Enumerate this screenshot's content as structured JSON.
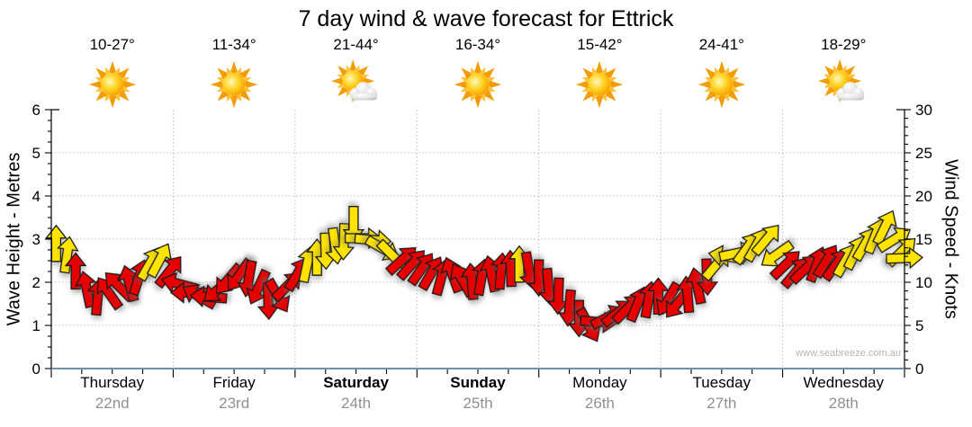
{
  "title": "7 day wind & wave forecast for Ettrick",
  "watermark": "www.seabreeze.com.au",
  "colors": {
    "arrow_red": "#e60000",
    "arrow_yellow": "#ffe400",
    "arrow_outline": "#1a1a1a",
    "axis_black": "#000000",
    "axis_blue": "#3a6d99",
    "grid_gray": "#bdbdbd",
    "date_gray": "#909090",
    "watermark_gray": "#b4b4b4"
  },
  "chart_data": {
    "type": "scatter",
    "description": "Wind direction arrows plotted against time; vertical position = wind speed in knots (right axis), aligned with wave height scale (left axis). Arrow color: red = lighter winds, yellow = stronger winds.",
    "title": "7 day wind & wave forecast for Ettrick",
    "left_axis": {
      "label": "Wave Height - Metres",
      "min": 0,
      "max": 6,
      "ticks": [
        0,
        1,
        2,
        3,
        4,
        5,
        6
      ]
    },
    "right_axis": {
      "label": "Wind Speed - Knots",
      "min": 0,
      "max": 30,
      "ticks": [
        0,
        5,
        10,
        15,
        20,
        25,
        30
      ]
    },
    "grid": "dotted horizontal every 5 knots, dotted vertical at day boundaries",
    "days": [
      {
        "name": "Thursday",
        "date": "22nd",
        "temp": "10-27°",
        "icon": "sunny",
        "bold": false
      },
      {
        "name": "Friday",
        "date": "23rd",
        "temp": "11-34°",
        "icon": "sunny",
        "bold": false
      },
      {
        "name": "Saturday",
        "date": "24th",
        "temp": "21-44°",
        "icon": "partly-cloudy",
        "bold": true
      },
      {
        "name": "Sunday",
        "date": "25th",
        "temp": "16-34°",
        "icon": "sunny",
        "bold": true
      },
      {
        "name": "Monday",
        "date": "26th",
        "temp": "15-42°",
        "icon": "sunny",
        "bold": false
      },
      {
        "name": "Tuesday",
        "date": "27th",
        "temp": "24-41°",
        "icon": "sunny",
        "bold": false
      },
      {
        "name": "Wednesday",
        "date": "28th",
        "temp": "18-29°",
        "icon": "partly-cloudy",
        "bold": false
      }
    ],
    "arrows_format": "[time_days_from_start, wind_speed_knots, direction_deg_clockwise_from_up, color r|y]",
    "arrows": [
      [
        0.04,
        14.5,
        0,
        "y"
      ],
      [
        0.13,
        13.2,
        8,
        "y"
      ],
      [
        0.2,
        11.3,
        0,
        "r"
      ],
      [
        0.29,
        9.2,
        -12,
        "r"
      ],
      [
        0.38,
        8.3,
        5,
        "r"
      ],
      [
        0.47,
        8.8,
        -35,
        "r"
      ],
      [
        0.55,
        9.6,
        -45,
        "r"
      ],
      [
        0.64,
        9.9,
        -15,
        "r"
      ],
      [
        0.72,
        10.6,
        18,
        "r"
      ],
      [
        0.81,
        12.2,
        30,
        "y"
      ],
      [
        0.89,
        12.6,
        28,
        "y"
      ],
      [
        0.97,
        11.3,
        38,
        "r"
      ],
      [
        1.05,
        9.8,
        -75,
        "r"
      ],
      [
        1.13,
        8.8,
        -90,
        "r"
      ],
      [
        1.21,
        8.4,
        -60,
        "r"
      ],
      [
        1.29,
        8.3,
        -85,
        "r"
      ],
      [
        1.37,
        9.2,
        -130,
        "r"
      ],
      [
        1.45,
        10.3,
        -140,
        "r"
      ],
      [
        1.54,
        10.8,
        -145,
        "r"
      ],
      [
        1.62,
        10.4,
        -170,
        "r"
      ],
      [
        1.7,
        9.4,
        -155,
        "r"
      ],
      [
        1.78,
        7.8,
        178,
        "r"
      ],
      [
        1.86,
        8.4,
        150,
        "r"
      ],
      [
        1.94,
        9.6,
        45,
        "r"
      ],
      [
        2.02,
        11.0,
        30,
        "r"
      ],
      [
        2.1,
        12.1,
        12,
        "y"
      ],
      [
        2.18,
        12.9,
        0,
        "y"
      ],
      [
        2.25,
        13.6,
        178,
        "y"
      ],
      [
        2.33,
        14.2,
        172,
        "y"
      ],
      [
        2.4,
        14.7,
        182,
        "y"
      ],
      [
        2.48,
        16.7,
        180,
        "y"
      ],
      [
        2.56,
        15.1,
        90,
        "y"
      ],
      [
        2.64,
        14.9,
        95,
        "y"
      ],
      [
        2.72,
        13.9,
        120,
        "y"
      ],
      [
        2.8,
        13.1,
        135,
        "y"
      ],
      [
        2.88,
        12.6,
        48,
        "r"
      ],
      [
        2.96,
        12.1,
        42,
        "r"
      ],
      [
        3.04,
        11.6,
        35,
        "r"
      ],
      [
        3.12,
        11.1,
        30,
        "r"
      ],
      [
        3.2,
        10.6,
        15,
        "r"
      ],
      [
        3.29,
        10.9,
        -20,
        "r"
      ],
      [
        3.37,
        10.3,
        -30,
        "r"
      ],
      [
        3.45,
        10.1,
        -5,
        "r"
      ],
      [
        3.53,
        10.6,
        10,
        "r"
      ],
      [
        3.61,
        11.0,
        -12,
        "r"
      ],
      [
        3.69,
        11.3,
        5,
        "r"
      ],
      [
        3.77,
        11.6,
        -2,
        "r"
      ],
      [
        3.84,
        12.1,
        0,
        "y"
      ],
      [
        3.92,
        11.4,
        170,
        "r"
      ],
      [
        4.0,
        10.5,
        180,
        "r"
      ],
      [
        4.08,
        9.5,
        175,
        "r"
      ],
      [
        4.16,
        8.4,
        182,
        "r"
      ],
      [
        4.25,
        7.0,
        185,
        "r"
      ],
      [
        4.33,
        5.8,
        180,
        "r"
      ],
      [
        4.41,
        5.0,
        152,
        "r"
      ],
      [
        4.49,
        5.4,
        95,
        "r"
      ],
      [
        4.57,
        6.0,
        62,
        "r"
      ],
      [
        4.65,
        6.5,
        52,
        "r"
      ],
      [
        4.73,
        7.0,
        45,
        "r"
      ],
      [
        4.81,
        7.5,
        22,
        "r"
      ],
      [
        4.9,
        8.0,
        10,
        "r"
      ],
      [
        4.98,
        8.4,
        0,
        "r"
      ],
      [
        5.06,
        8.0,
        -150,
        "r"
      ],
      [
        5.14,
        7.6,
        -142,
        "r"
      ],
      [
        5.22,
        8.6,
        -5,
        "r"
      ],
      [
        5.3,
        9.6,
        -12,
        "r"
      ],
      [
        5.38,
        10.6,
        178,
        "r"
      ],
      [
        5.46,
        12.1,
        40,
        "y"
      ],
      [
        5.54,
        13.0,
        -80,
        "y"
      ],
      [
        5.63,
        13.4,
        78,
        "y"
      ],
      [
        5.71,
        14.0,
        36,
        "y"
      ],
      [
        5.79,
        14.4,
        30,
        "y"
      ],
      [
        5.87,
        15.0,
        40,
        "y"
      ],
      [
        5.95,
        13.2,
        -125,
        "y"
      ],
      [
        6.03,
        12.1,
        46,
        "r"
      ],
      [
        6.11,
        11.2,
        40,
        "r"
      ],
      [
        6.19,
        11.6,
        46,
        "r"
      ],
      [
        6.28,
        12.1,
        20,
        "r"
      ],
      [
        6.36,
        12.5,
        32,
        "r"
      ],
      [
        6.44,
        12.1,
        36,
        "r"
      ],
      [
        6.52,
        12.6,
        30,
        "y"
      ],
      [
        6.6,
        13.5,
        26,
        "y"
      ],
      [
        6.68,
        14.5,
        30,
        "y"
      ],
      [
        6.76,
        15.4,
        22,
        "y"
      ],
      [
        6.84,
        16.4,
        26,
        "y"
      ],
      [
        6.92,
        15.0,
        58,
        "y"
      ],
      [
        6.98,
        13.6,
        46,
        "y"
      ],
      [
        7.0,
        12.8,
        88,
        "y"
      ]
    ]
  }
}
